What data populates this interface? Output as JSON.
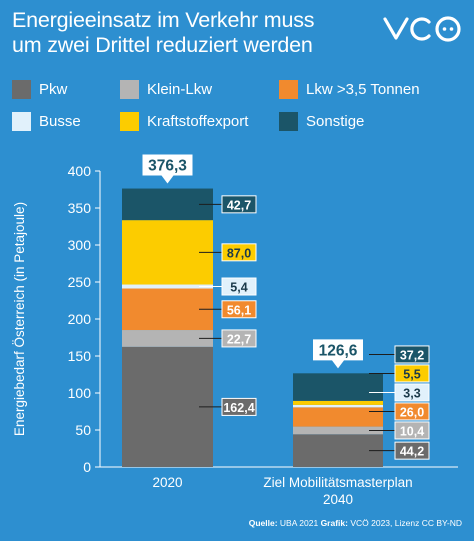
{
  "header": {
    "title_line1": "Energieeinsatz im Verkehr muss",
    "title_line2": "um zwei Drittel reduziert werden",
    "logo_text": "VCÖ"
  },
  "colors": {
    "background": "#2d8fd0",
    "pkw": "#6b6b6b",
    "klein_lkw": "#b4b4b4",
    "lkw": "#f18a2e",
    "busse": "#e1f1fb",
    "kraftstoffexport": "#fccc00",
    "sonstige": "#1b5568"
  },
  "legend": [
    {
      "label": "Pkw",
      "color": "#6b6b6b"
    },
    {
      "label": "Klein-Lkw",
      "color": "#b4b4b4"
    },
    {
      "label": "Lkw >3,5 Tonnen",
      "color": "#f18a2e"
    },
    {
      "label": "Busse",
      "color": "#e1f1fb"
    },
    {
      "label": "Kraftstoffexport",
      "color": "#fccc00"
    },
    {
      "label": "Sonstige",
      "color": "#1b5568"
    }
  ],
  "chart_data": {
    "type": "bar",
    "stacked": true,
    "categories": [
      "2020",
      "Ziel Mobilitätsmasterplan 2040"
    ],
    "category_lines": [
      [
        "2020"
      ],
      [
        "Ziel Mobilitätsmasterplan",
        "2040"
      ]
    ],
    "totals": [
      "376,3",
      "126,6"
    ],
    "series": [
      {
        "name": "Pkw",
        "color": "#6b6b6b",
        "values": [
          162.4,
          44.2
        ],
        "labels": [
          "162,4",
          "44,2"
        ]
      },
      {
        "name": "Klein-Lkw",
        "color": "#b4b4b4",
        "values": [
          22.7,
          10.4
        ],
        "labels": [
          "22,7",
          "10,4"
        ]
      },
      {
        "name": "Lkw >3,5 Tonnen",
        "color": "#f18a2e",
        "values": [
          56.1,
          26.0
        ],
        "labels": [
          "56,1",
          "26,0"
        ]
      },
      {
        "name": "Busse",
        "color": "#e1f1fb",
        "values": [
          5.4,
          3.3
        ],
        "labels": [
          "5,4",
          "3,3"
        ]
      },
      {
        "name": "Kraftstoffexport",
        "color": "#fccc00",
        "values": [
          87.0,
          5.5
        ],
        "labels": [
          "87,0",
          "5,5"
        ]
      },
      {
        "name": "Sonstige",
        "color": "#1b5568",
        "values": [
          42.7,
          37.2
        ],
        "labels": [
          "42,7",
          "37,2"
        ]
      }
    ],
    "ylabel": "Energiebedarf Österreich (in Petajoule)",
    "ylim": [
      0,
      400
    ],
    "yticks": [
      0,
      50,
      100,
      150,
      200,
      250,
      300,
      350,
      400
    ],
    "grid": false,
    "legend_position": "top"
  },
  "footer": {
    "source_label": "Quelle:",
    "source_value": "UBA 2021",
    "graphic_label": "Grafik:",
    "graphic_value": "VCÖ 2023, Lizenz CC BY-ND"
  }
}
